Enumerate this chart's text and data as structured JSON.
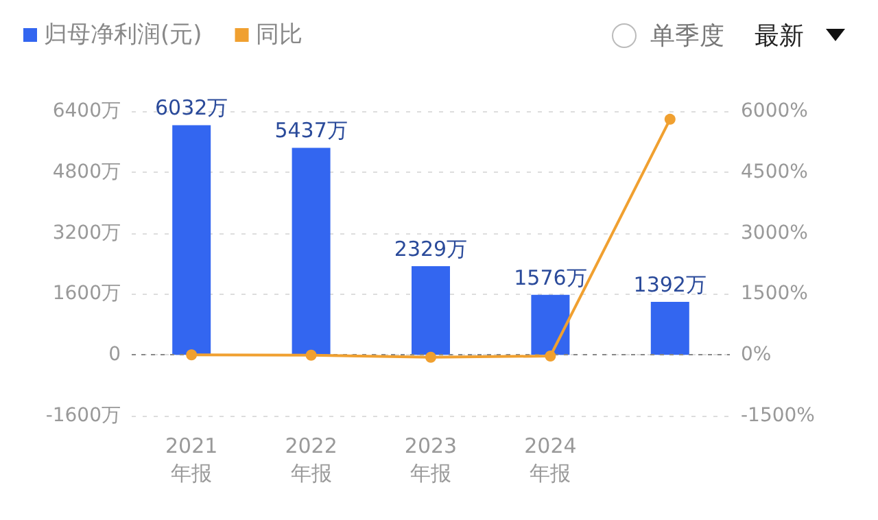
{
  "chart_data": {
    "type": "bar",
    "categories": [
      "2021\n年报",
      "2022\n年报",
      "2023\n年报",
      "2024\n年报",
      null
    ],
    "series": [
      {
        "name": "归母净利润(元)",
        "color": "#3366f0",
        "values": [
          6032,
          5437,
          2329,
          1576,
          1392
        ],
        "value_labels": [
          "6032万",
          "5437万",
          "2329万",
          "1576万",
          "1392万"
        ]
      },
      {
        "name": "同比",
        "type": "line",
        "axis": "y2",
        "color": "#f0a030",
        "values": [
          0,
          -10,
          -60,
          -30,
          5800
        ],
        "marker": "circle"
      }
    ],
    "ylim": [
      -1600,
      6400
    ],
    "yticks": [
      {
        "value": -1600,
        "label": "-1600万"
      },
      {
        "value": 0,
        "label": "0"
      },
      {
        "value": 1600,
        "label": "1600万"
      },
      {
        "value": 3200,
        "label": "3200万"
      },
      {
        "value": 4800,
        "label": "4800万"
      },
      {
        "value": 6400,
        "label": "6400万"
      }
    ],
    "y2lim": [
      -1500,
      6000
    ],
    "y2ticks": [
      {
        "value": -1500,
        "label": "-1500%"
      },
      {
        "value": 0,
        "label": "0%"
      },
      {
        "value": 1500,
        "label": "1500%"
      },
      {
        "value": 3000,
        "label": "3000%"
      },
      {
        "value": 4500,
        "label": "4500%"
      },
      {
        "value": 6000,
        "label": "6000%"
      }
    ],
    "grid": "y",
    "legend": "top left",
    "ref_lines": [
      {
        "axis": "y",
        "value": 0,
        "color": "#888888",
        "line_style": "dotted"
      }
    ],
    "annotations": [
      "单季度",
      "最新"
    ]
  }
}
